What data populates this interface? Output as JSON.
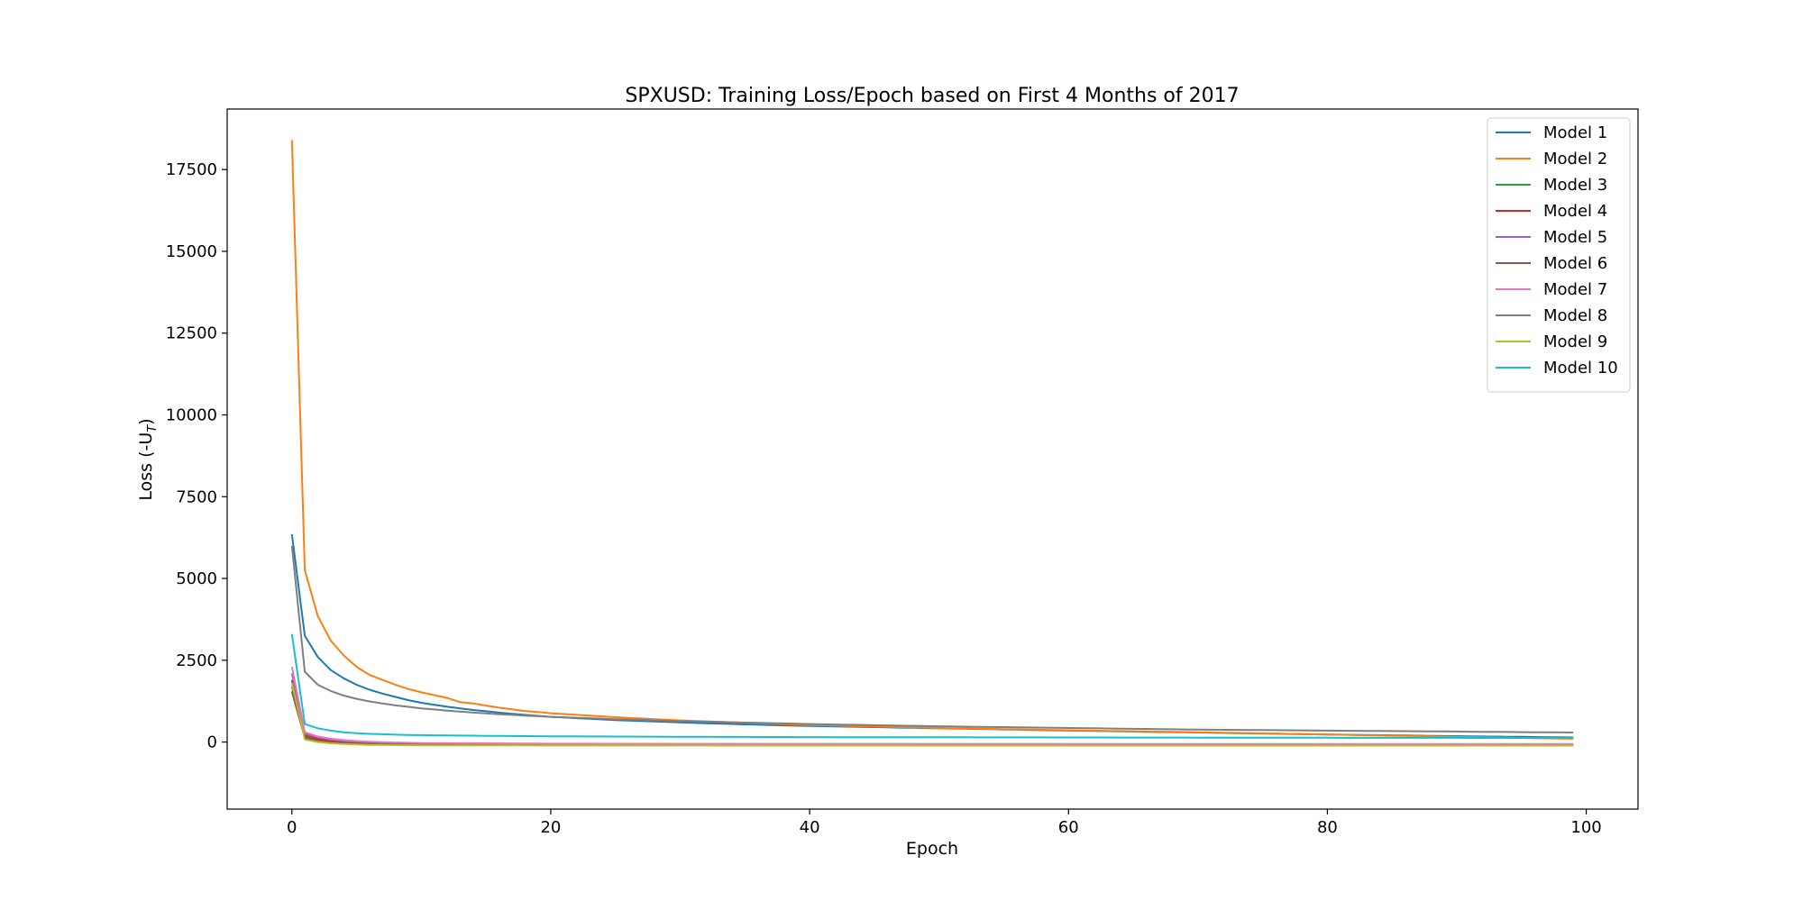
{
  "chart_data": {
    "type": "line",
    "title": "SPXUSD: Training Loss/Epoch based on First 4 Months of 2017",
    "xlabel": "Epoch",
    "ylabel": "Loss (-U",
    "ylabel_subscript": "T",
    "ylabel_close": ")",
    "xlim": [
      -5,
      104
    ],
    "ylim": [
      -2050,
      19350
    ],
    "xticks": [
      0,
      20,
      40,
      60,
      80,
      100
    ],
    "xtick_labels": [
      "0",
      "20",
      "40",
      "60",
      "80",
      "100"
    ],
    "yticks": [
      0,
      2500,
      5000,
      7500,
      10000,
      12500,
      15000,
      17500
    ],
    "ytick_labels": [
      "0",
      "2500",
      "5000",
      "7500",
      "10000",
      "12500",
      "15000",
      "17500"
    ],
    "grid": false,
    "legend_position": "top-right",
    "epochs": 100,
    "series": [
      {
        "name": "Model 1",
        "color": "#1f77b4",
        "points": [
          [
            0,
            6350
          ],
          [
            1,
            3250
          ],
          [
            2,
            2600
          ],
          [
            3,
            2200
          ],
          [
            4,
            1950
          ],
          [
            5,
            1750
          ],
          [
            6,
            1600
          ],
          [
            7,
            1480
          ],
          [
            8,
            1380
          ],
          [
            9,
            1280
          ],
          [
            10,
            1200
          ],
          [
            12,
            1080
          ],
          [
            14,
            980
          ],
          [
            16,
            900
          ],
          [
            18,
            830
          ],
          [
            20,
            770
          ],
          [
            25,
            670
          ],
          [
            30,
            600
          ],
          [
            35,
            540
          ],
          [
            40,
            490
          ],
          [
            50,
            420
          ],
          [
            60,
            350
          ],
          [
            70,
            290
          ],
          [
            80,
            230
          ],
          [
            90,
            180
          ],
          [
            99,
            140
          ]
        ]
      },
      {
        "name": "Model 2",
        "color": "#ff7f0e",
        "points": [
          [
            0,
            18400
          ],
          [
            1,
            5250
          ],
          [
            2,
            3850
          ],
          [
            3,
            3100
          ],
          [
            4,
            2650
          ],
          [
            5,
            2300
          ],
          [
            6,
            2050
          ],
          [
            7,
            1900
          ],
          [
            8,
            1750
          ],
          [
            9,
            1620
          ],
          [
            10,
            1520
          ],
          [
            12,
            1350
          ],
          [
            13,
            1220
          ],
          [
            14,
            1180
          ],
          [
            16,
            1050
          ],
          [
            18,
            950
          ],
          [
            20,
            880
          ],
          [
            25,
            760
          ],
          [
            30,
            660
          ],
          [
            35,
            590
          ],
          [
            40,
            520
          ],
          [
            50,
            430
          ],
          [
            60,
            360
          ],
          [
            70,
            300
          ],
          [
            80,
            230
          ],
          [
            90,
            160
          ],
          [
            99,
            100
          ]
        ]
      },
      {
        "name": "Model 3",
        "color": "#2ca02c",
        "points": [
          [
            0,
            1700
          ],
          [
            1,
            150
          ],
          [
            2,
            60
          ],
          [
            3,
            10
          ],
          [
            4,
            -20
          ],
          [
            5,
            -40
          ],
          [
            6,
            -50
          ],
          [
            8,
            -60
          ],
          [
            10,
            -65
          ],
          [
            20,
            -70
          ],
          [
            40,
            -72
          ],
          [
            60,
            -72
          ],
          [
            80,
            -72
          ],
          [
            99,
            -72
          ]
        ]
      },
      {
        "name": "Model 4",
        "color": "#d62728",
        "points": [
          [
            0,
            1900
          ],
          [
            1,
            200
          ],
          [
            2,
            100
          ],
          [
            3,
            40
          ],
          [
            4,
            0
          ],
          [
            5,
            -20
          ],
          [
            6,
            -35
          ],
          [
            8,
            -50
          ],
          [
            10,
            -58
          ],
          [
            20,
            -65
          ],
          [
            40,
            -68
          ],
          [
            60,
            -70
          ],
          [
            80,
            -70
          ],
          [
            99,
            -70
          ]
        ]
      },
      {
        "name": "Model 5",
        "color": "#9467bd",
        "points": [
          [
            0,
            2100
          ],
          [
            1,
            250
          ],
          [
            2,
            150
          ],
          [
            3,
            80
          ],
          [
            4,
            40
          ],
          [
            5,
            10
          ],
          [
            6,
            -10
          ],
          [
            8,
            -30
          ],
          [
            10,
            -40
          ],
          [
            20,
            -55
          ],
          [
            40,
            -62
          ],
          [
            60,
            -64
          ],
          [
            80,
            -65
          ],
          [
            99,
            -65
          ]
        ]
      },
      {
        "name": "Model 6",
        "color": "#8c564b",
        "points": [
          [
            0,
            1550
          ],
          [
            1,
            120
          ],
          [
            2,
            40
          ],
          [
            3,
            0
          ],
          [
            4,
            -25
          ],
          [
            5,
            -40
          ],
          [
            6,
            -50
          ],
          [
            8,
            -60
          ],
          [
            10,
            -65
          ],
          [
            20,
            -70
          ],
          [
            40,
            -72
          ],
          [
            60,
            -73
          ],
          [
            80,
            -73
          ],
          [
            99,
            -73
          ]
        ]
      },
      {
        "name": "Model 7",
        "color": "#e377c2",
        "points": [
          [
            0,
            2300
          ],
          [
            1,
            300
          ],
          [
            2,
            170
          ],
          [
            3,
            100
          ],
          [
            4,
            60
          ],
          [
            5,
            30
          ],
          [
            6,
            10
          ],
          [
            8,
            -15
          ],
          [
            10,
            -30
          ],
          [
            20,
            -50
          ],
          [
            40,
            -60
          ],
          [
            60,
            -63
          ],
          [
            80,
            -64
          ],
          [
            99,
            -65
          ]
        ]
      },
      {
        "name": "Model 8",
        "color": "#7f7f7f",
        "points": [
          [
            0,
            6000
          ],
          [
            1,
            2150
          ],
          [
            2,
            1750
          ],
          [
            3,
            1560
          ],
          [
            4,
            1420
          ],
          [
            5,
            1320
          ],
          [
            6,
            1240
          ],
          [
            7,
            1180
          ],
          [
            8,
            1120
          ],
          [
            10,
            1030
          ],
          [
            12,
            960
          ],
          [
            14,
            900
          ],
          [
            16,
            850
          ],
          [
            20,
            770
          ],
          [
            25,
            700
          ],
          [
            30,
            640
          ],
          [
            40,
            550
          ],
          [
            50,
            480
          ],
          [
            60,
            430
          ],
          [
            70,
            380
          ],
          [
            80,
            350
          ],
          [
            90,
            320
          ],
          [
            99,
            290
          ]
        ]
      },
      {
        "name": "Model 9",
        "color": "#bcbd22",
        "points": [
          [
            0,
            1800
          ],
          [
            1,
            80
          ],
          [
            2,
            0
          ],
          [
            3,
            -40
          ],
          [
            4,
            -60
          ],
          [
            5,
            -75
          ],
          [
            6,
            -85
          ],
          [
            8,
            -95
          ],
          [
            10,
            -100
          ],
          [
            20,
            -105
          ],
          [
            40,
            -108
          ],
          [
            60,
            -108
          ],
          [
            80,
            -108
          ],
          [
            99,
            -108
          ]
        ]
      },
      {
        "name": "Model 10",
        "color": "#17becf",
        "points": [
          [
            0,
            3300
          ],
          [
            1,
            550
          ],
          [
            2,
            420
          ],
          [
            3,
            350
          ],
          [
            4,
            300
          ],
          [
            5,
            270
          ],
          [
            6,
            250
          ],
          [
            8,
            225
          ],
          [
            10,
            210
          ],
          [
            15,
            190
          ],
          [
            20,
            175
          ],
          [
            30,
            160
          ],
          [
            40,
            150
          ],
          [
            60,
            140
          ],
          [
            80,
            130
          ],
          [
            99,
            125
          ]
        ]
      }
    ]
  }
}
